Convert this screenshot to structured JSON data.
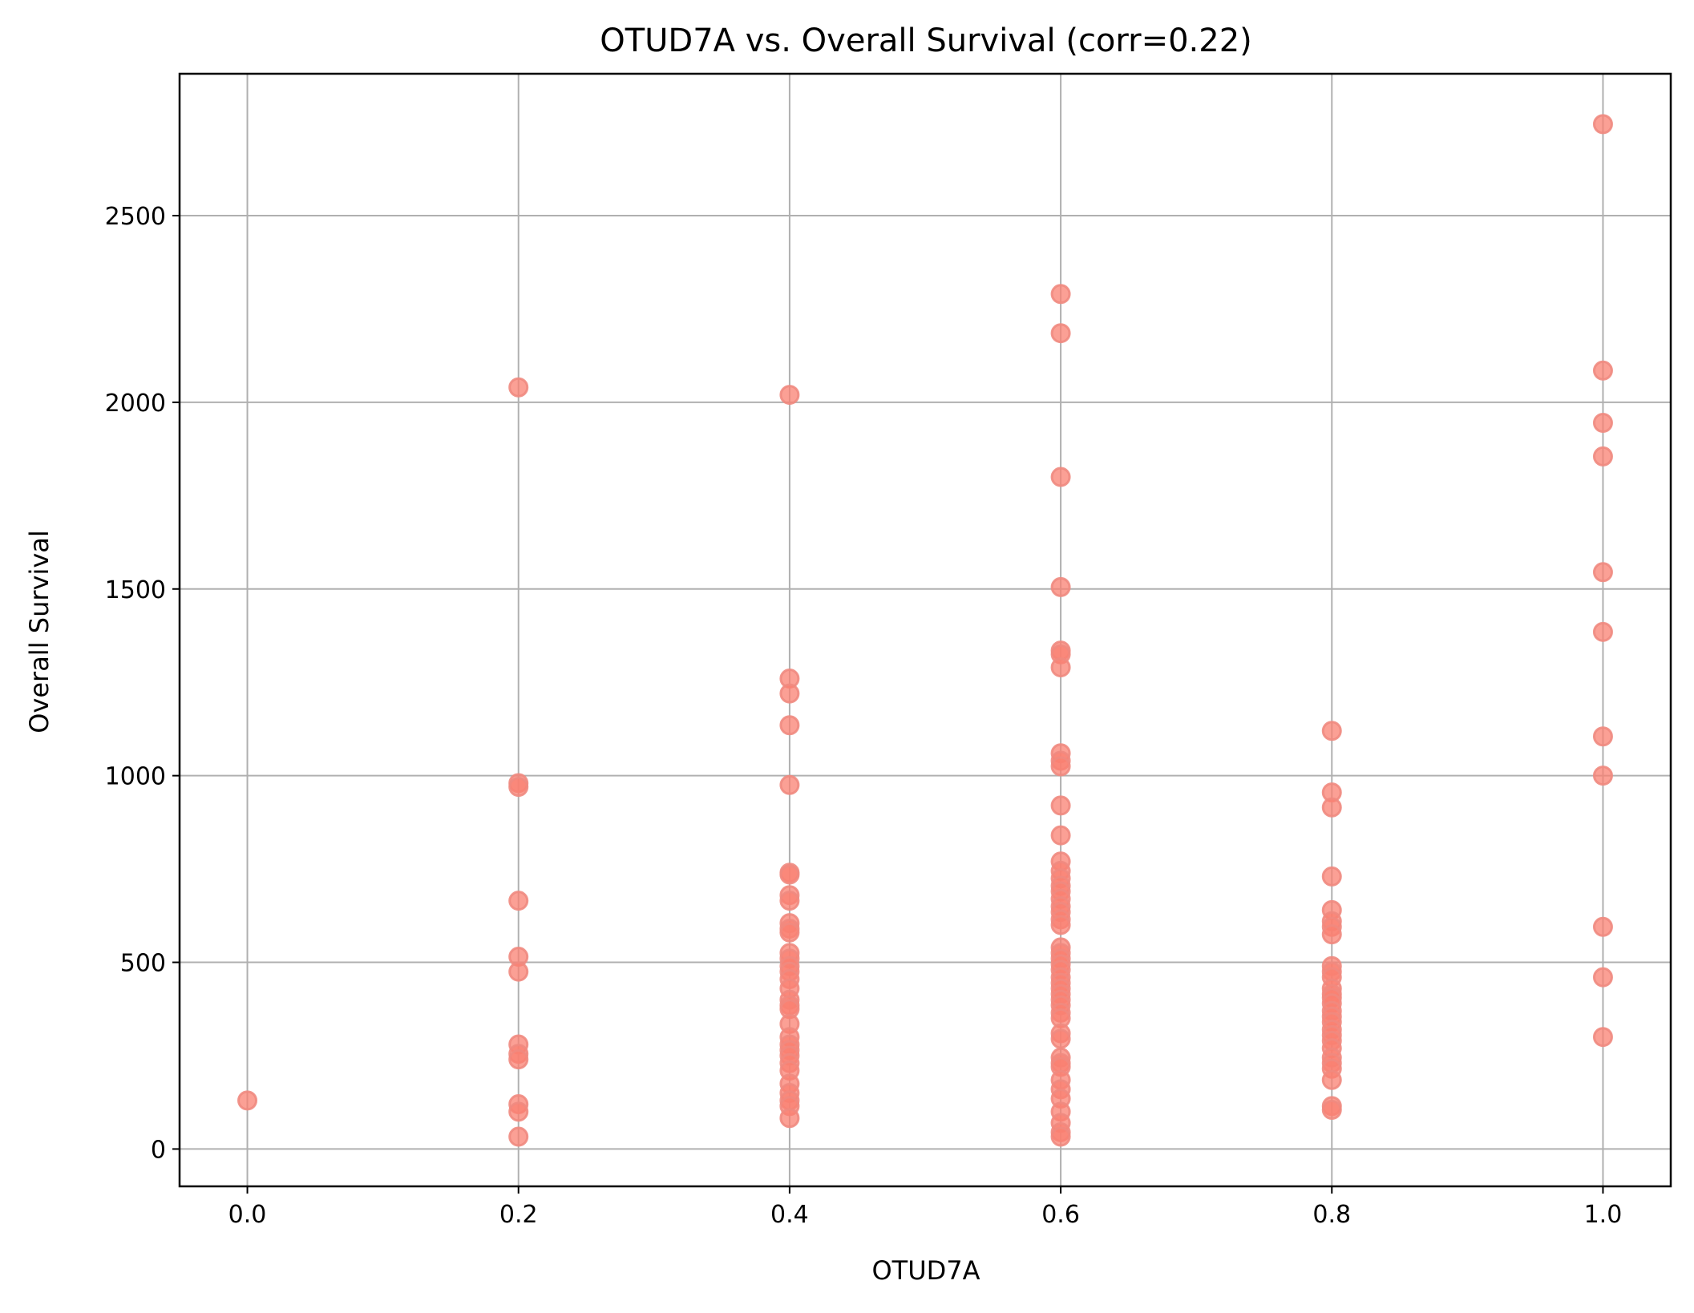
{
  "chart_data": {
    "type": "scatter",
    "title": "OTUD7A vs. Overall Survival (corr=0.22)",
    "xlabel": "OTUD7A",
    "ylabel": "Overall Survival",
    "xlim": [
      -0.05,
      1.05
    ],
    "ylim": [
      -100,
      2880
    ],
    "xticks": [
      0.0,
      0.2,
      0.4,
      0.6,
      0.8,
      1.0
    ],
    "xtick_labels": [
      "0.0",
      "0.2",
      "0.4",
      "0.6",
      "0.8",
      "1.0"
    ],
    "yticks": [
      0,
      500,
      1000,
      1500,
      2000,
      2500
    ],
    "ytick_labels": [
      "0",
      "500",
      "1000",
      "1500",
      "2000",
      "2500"
    ],
    "grid": true,
    "marker_color": "#fa8072",
    "marker_edge_color": "#f08a80",
    "marker_alpha": 0.75,
    "series": [
      {
        "points": [
          [
            0.0,
            130
          ],
          [
            0.2,
            2040
          ],
          [
            0.2,
            980
          ],
          [
            0.2,
            970
          ],
          [
            0.2,
            665
          ],
          [
            0.2,
            515
          ],
          [
            0.2,
            475
          ],
          [
            0.2,
            280
          ],
          [
            0.2,
            255
          ],
          [
            0.2,
            240
          ],
          [
            0.2,
            120
          ],
          [
            0.2,
            100
          ],
          [
            0.2,
            33
          ],
          [
            0.4,
            2020
          ],
          [
            0.4,
            1260
          ],
          [
            0.4,
            1220
          ],
          [
            0.4,
            1135
          ],
          [
            0.4,
            975
          ],
          [
            0.4,
            740
          ],
          [
            0.4,
            735
          ],
          [
            0.4,
            680
          ],
          [
            0.4,
            665
          ],
          [
            0.4,
            605
          ],
          [
            0.4,
            590
          ],
          [
            0.4,
            580
          ],
          [
            0.4,
            525
          ],
          [
            0.4,
            510
          ],
          [
            0.4,
            490
          ],
          [
            0.4,
            475
          ],
          [
            0.4,
            455
          ],
          [
            0.4,
            430
          ],
          [
            0.4,
            400
          ],
          [
            0.4,
            385
          ],
          [
            0.4,
            375
          ],
          [
            0.4,
            335
          ],
          [
            0.4,
            300
          ],
          [
            0.4,
            280
          ],
          [
            0.4,
            265
          ],
          [
            0.4,
            250
          ],
          [
            0.4,
            230
          ],
          [
            0.4,
            210
          ],
          [
            0.4,
            175
          ],
          [
            0.4,
            150
          ],
          [
            0.4,
            130
          ],
          [
            0.4,
            115
          ],
          [
            0.4,
            83
          ],
          [
            0.6,
            2290
          ],
          [
            0.6,
            2185
          ],
          [
            0.6,
            1800
          ],
          [
            0.6,
            1505
          ],
          [
            0.6,
            1335
          ],
          [
            0.6,
            1325
          ],
          [
            0.6,
            1290
          ],
          [
            0.6,
            1060
          ],
          [
            0.6,
            1040
          ],
          [
            0.6,
            1025
          ],
          [
            0.6,
            920
          ],
          [
            0.6,
            840
          ],
          [
            0.6,
            770
          ],
          [
            0.6,
            745
          ],
          [
            0.6,
            725
          ],
          [
            0.6,
            705
          ],
          [
            0.6,
            690
          ],
          [
            0.6,
            670
          ],
          [
            0.6,
            650
          ],
          [
            0.6,
            635
          ],
          [
            0.6,
            615
          ],
          [
            0.6,
            600
          ],
          [
            0.6,
            540
          ],
          [
            0.6,
            525
          ],
          [
            0.6,
            510
          ],
          [
            0.6,
            495
          ],
          [
            0.6,
            480
          ],
          [
            0.6,
            460
          ],
          [
            0.6,
            445
          ],
          [
            0.6,
            430
          ],
          [
            0.6,
            415
          ],
          [
            0.6,
            400
          ],
          [
            0.6,
            385
          ],
          [
            0.6,
            365
          ],
          [
            0.6,
            350
          ],
          [
            0.6,
            310
          ],
          [
            0.6,
            295
          ],
          [
            0.6,
            245
          ],
          [
            0.6,
            230
          ],
          [
            0.6,
            220
          ],
          [
            0.6,
            185
          ],
          [
            0.6,
            160
          ],
          [
            0.6,
            135
          ],
          [
            0.6,
            100
          ],
          [
            0.6,
            70
          ],
          [
            0.6,
            45
          ],
          [
            0.6,
            33
          ],
          [
            0.8,
            1120
          ],
          [
            0.8,
            955
          ],
          [
            0.8,
            915
          ],
          [
            0.8,
            730
          ],
          [
            0.8,
            640
          ],
          [
            0.8,
            610
          ],
          [
            0.8,
            595
          ],
          [
            0.8,
            575
          ],
          [
            0.8,
            490
          ],
          [
            0.8,
            475
          ],
          [
            0.8,
            460
          ],
          [
            0.8,
            430
          ],
          [
            0.8,
            415
          ],
          [
            0.8,
            405
          ],
          [
            0.8,
            390
          ],
          [
            0.8,
            370
          ],
          [
            0.8,
            355
          ],
          [
            0.8,
            340
          ],
          [
            0.8,
            320
          ],
          [
            0.8,
            305
          ],
          [
            0.8,
            290
          ],
          [
            0.8,
            270
          ],
          [
            0.8,
            245
          ],
          [
            0.8,
            230
          ],
          [
            0.8,
            215
          ],
          [
            0.8,
            185
          ],
          [
            0.8,
            115
          ],
          [
            0.8,
            105
          ],
          [
            1.0,
            2745
          ],
          [
            1.0,
            2085
          ],
          [
            1.0,
            1945
          ],
          [
            1.0,
            1855
          ],
          [
            1.0,
            1545
          ],
          [
            1.0,
            1385
          ],
          [
            1.0,
            1105
          ],
          [
            1.0,
            1000
          ],
          [
            1.0,
            595
          ],
          [
            1.0,
            460
          ],
          [
            1.0,
            300
          ]
        ]
      }
    ]
  }
}
